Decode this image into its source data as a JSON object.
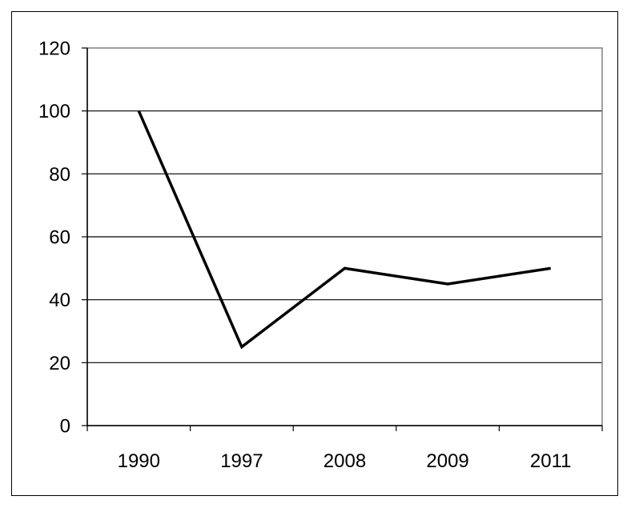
{
  "chart_data": {
    "type": "line",
    "categories": [
      "1990",
      "1997",
      "2008",
      "2009",
      "2011"
    ],
    "series": [
      {
        "values": [
          100,
          25,
          50,
          45,
          50
        ]
      }
    ],
    "title": "",
    "xlabel": "",
    "ylabel": "",
    "ylim": [
      0,
      120
    ],
    "yticks": [
      "0",
      "20",
      "40",
      "60",
      "80",
      "100",
      "120"
    ],
    "grid": "horizontal",
    "legend": "none",
    "line_color": "#000000",
    "grid_color": "#000000",
    "plot_border_color": "#808080"
  }
}
